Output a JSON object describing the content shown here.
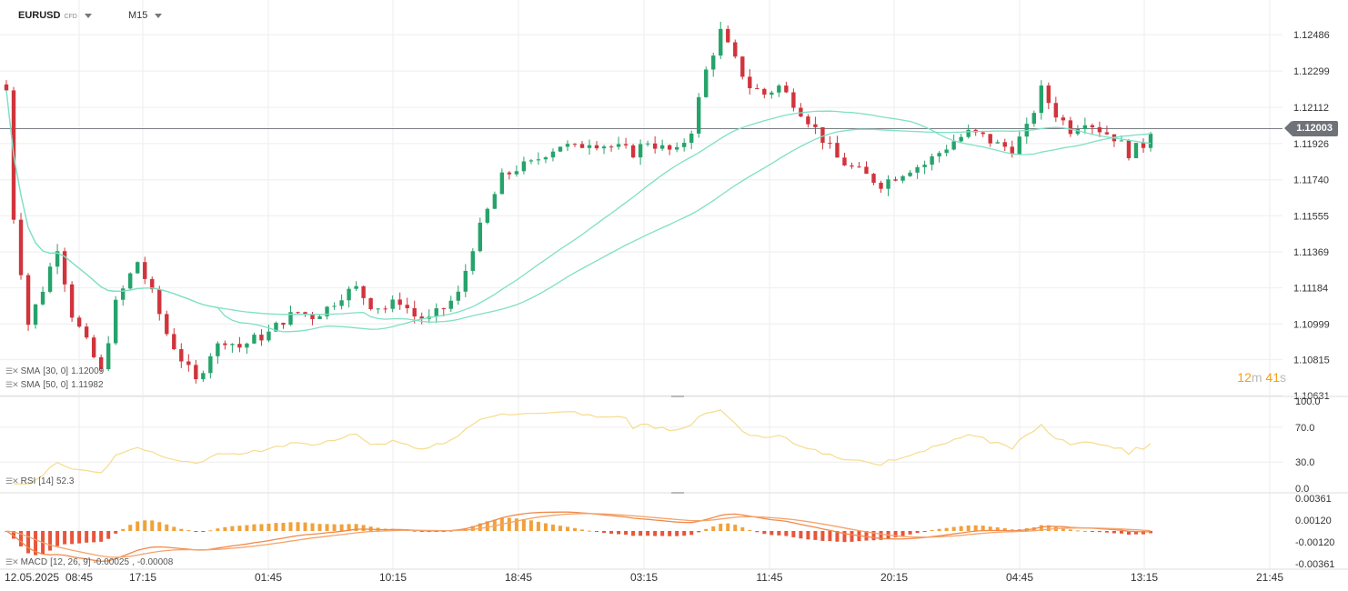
{
  "toolbar": {
    "symbol": "EURUSD",
    "symbol_type": "CFD",
    "timeframe": "M15"
  },
  "price": {
    "current": "1.12003",
    "ticks": [
      "1.12486",
      "1.12299",
      "1.12112",
      "1.11926",
      "1.11740",
      "1.11555",
      "1.11369",
      "1.11184",
      "1.10999",
      "1.10815",
      "1.10631"
    ]
  },
  "timer": {
    "minutes": "12",
    "m_unit": "m",
    "seconds": "41",
    "s_unit": "s"
  },
  "indicators": {
    "sma30": {
      "label": "SMA",
      "params": "[30, 0]",
      "value": "1.12009",
      "color": "#7fe0c4"
    },
    "sma50": {
      "label": "SMA",
      "params": "[50, 0]",
      "value": "1.11982",
      "color": "#7fe0c4"
    },
    "rsi": {
      "label": "RSI",
      "params": "[14]",
      "value": "52.3",
      "ticks": [
        "100.0",
        "70.0",
        "30.0",
        "0.0"
      ],
      "color": "#f6dc8c"
    },
    "macd": {
      "label": "MACD",
      "params": "[12, 26, 9]",
      "value1": "-0.00025",
      "value2": "-0.00008",
      "ticks": [
        "0.00361",
        "0.00120",
        "-0.00120",
        "-0.00361"
      ]
    }
  },
  "time_axis": [
    "12.05.2025",
    "08:45",
    "17:15",
    "01:45",
    "10:15",
    "18:45",
    "03:15",
    "11:45",
    "20:15",
    "04:45",
    "13:15",
    "21:45"
  ],
  "colors": {
    "up": "#26a36b",
    "down": "#d0343c",
    "accent": "#f0a21b"
  },
  "chart_data": {
    "type": "candlestick",
    "timeframe": "M15",
    "close_path": [
      [
        0,
        1.122
      ],
      [
        1,
        1.1155
      ],
      [
        3,
        1.11
      ],
      [
        5,
        1.1118
      ],
      [
        7,
        1.114
      ],
      [
        9,
        1.1105
      ],
      [
        11,
        1.109
      ],
      [
        13,
        1.1075
      ],
      [
        15,
        1.111
      ],
      [
        17,
        1.1125
      ],
      [
        18,
        1.1132
      ],
      [
        20,
        1.1115
      ],
      [
        22,
        1.1095
      ],
      [
        24,
        1.1082
      ],
      [
        26,
        1.107
      ],
      [
        28,
        1.1085
      ],
      [
        30,
        1.1092
      ],
      [
        32,
        1.1088
      ],
      [
        34,
        1.1092
      ],
      [
        36,
        1.1095
      ],
      [
        38,
        1.1102
      ],
      [
        40,
        1.1106
      ],
      [
        42,
        1.1104
      ],
      [
        44,
        1.1108
      ],
      [
        46,
        1.1115
      ],
      [
        48,
        1.1118
      ],
      [
        50,
        1.111
      ],
      [
        52,
        1.1108
      ],
      [
        54,
        1.1112
      ],
      [
        56,
        1.1104
      ],
      [
        58,
        1.1102
      ],
      [
        60,
        1.1108
      ],
      [
        62,
        1.1115
      ],
      [
        64,
        1.114
      ],
      [
        66,
        1.1158
      ],
      [
        68,
        1.1175
      ],
      [
        70,
        1.118
      ],
      [
        72,
        1.1182
      ],
      [
        74,
        1.1188
      ],
      [
        76,
        1.1192
      ],
      [
        78,
        1.119
      ],
      [
        80,
        1.1194
      ],
      [
        82,
        1.1192
      ],
      [
        84,
        1.119
      ],
      [
        86,
        1.1188
      ],
      [
        88,
        1.1194
      ],
      [
        90,
        1.119
      ],
      [
        92,
        1.1188
      ],
      [
        94,
        1.12
      ],
      [
        96,
        1.123
      ],
      [
        98,
        1.125
      ],
      [
        100,
        1.1235
      ],
      [
        102,
        1.1222
      ],
      [
        104,
        1.1218
      ],
      [
        106,
        1.1222
      ],
      [
        108,
        1.1214
      ],
      [
        110,
        1.1205
      ],
      [
        112,
        1.1195
      ],
      [
        114,
        1.1185
      ],
      [
        116,
        1.118
      ],
      [
        118,
        1.1176
      ],
      [
        120,
        1.1172
      ],
      [
        122,
        1.1176
      ],
      [
        124,
        1.118
      ],
      [
        126,
        1.1182
      ],
      [
        128,
        1.1188
      ],
      [
        130,
        1.1194
      ],
      [
        132,
        1.1198
      ],
      [
        134,
        1.1196
      ],
      [
        136,
        1.1192
      ],
      [
        138,
        1.119
      ],
      [
        140,
        1.12
      ],
      [
        142,
        1.122
      ],
      [
        144,
        1.1208
      ],
      [
        146,
        1.12
      ],
      [
        148,
        1.1205
      ],
      [
        150,
        1.12
      ],
      [
        152,
        1.1196
      ],
      [
        154,
        1.1188
      ],
      [
        156,
        1.1192
      ],
      [
        157,
        1.12
      ]
    ],
    "sma": [
      {
        "name": "SMA [30, 0]",
        "value": 1.12009
      },
      {
        "name": "SMA [50, 0]",
        "value": 1.11982
      }
    ],
    "rsi": {
      "name": "RSI [14]",
      "value": 52.3,
      "levels": [
        70,
        30
      ],
      "ylim": [
        0,
        100
      ]
    },
    "macd": {
      "name": "MACD [12, 26, 9]",
      "values": [
        -0.00025,
        -8e-05
      ],
      "ylim": [
        -0.00361,
        0.00361
      ]
    },
    "price_ylim": [
      1.10631,
      1.1258
    ],
    "x_labels": [
      "12.05.2025",
      "08:45",
      "17:15",
      "01:45",
      "10:15",
      "18:45",
      "03:15",
      "11:45",
      "20:15",
      "04:45",
      "13:15",
      "21:45"
    ]
  }
}
